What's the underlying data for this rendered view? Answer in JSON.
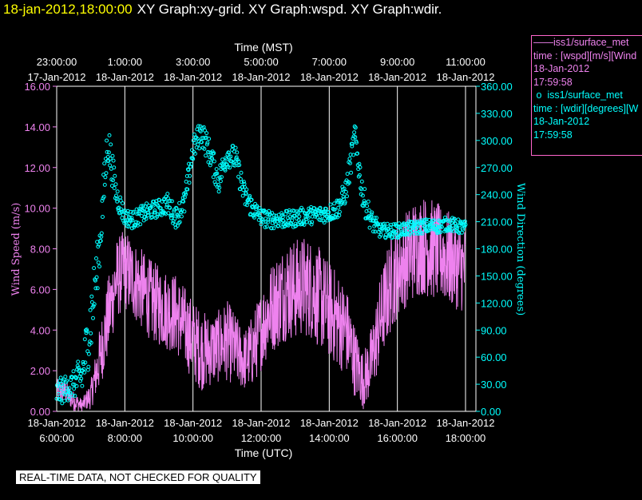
{
  "title": {
    "timestamp": "18-jan-2012,18:00:00",
    "graphs": "XY Graph:xy-grid.  XY Graph:wspd.  XY Graph:wdir."
  },
  "colors": {
    "wspd": "#ee82ee",
    "wdir": "#00ffff",
    "background": "#000000",
    "axis": "#ffffff"
  },
  "legend": {
    "wspd": {
      "name": "iss1/surface_met",
      "desc": "time : [wspd][m/s][Wind",
      "date": "18-Jan-2012",
      "time": "17:59:58"
    },
    "wdir": {
      "name": "iss1/surface_met",
      "desc": "time : [wdir][degrees][W",
      "date": "18-Jan-2012",
      "time": "17:59:58"
    }
  },
  "disclaimer": "REAL-TIME DATA, NOT CHECKED FOR QUALITY",
  "chart_data": {
    "type": "line",
    "top_axis": {
      "label": "Time (MST)",
      "ticks": [
        {
          "time": "23:00:00",
          "date": "17-Jan-2012"
        },
        {
          "time": "1:00:00",
          "date": "18-Jan-2012"
        },
        {
          "time": "3:00:00",
          "date": "18-Jan-2012"
        },
        {
          "time": "5:00:00",
          "date": "18-Jan-2012"
        },
        {
          "time": "7:00:00",
          "date": "18-Jan-2012"
        },
        {
          "time": "9:00:00",
          "date": "18-Jan-2012"
        },
        {
          "time": "11:00:00",
          "date": "18-Jan-2012"
        }
      ]
    },
    "bottom_axis": {
      "label": "Time (UTC)",
      "ticks": [
        {
          "time": "6:00:00",
          "date": "18-Jan-2012"
        },
        {
          "time": "8:00:00",
          "date": "18-Jan-2012"
        },
        {
          "time": "10:00:00",
          "date": "18-Jan-2012"
        },
        {
          "time": "12:00:00",
          "date": "18-Jan-2012"
        },
        {
          "time": "14:00:00",
          "date": "18-Jan-2012"
        },
        {
          "time": "16:00:00",
          "date": "18-Jan-2012"
        },
        {
          "time": "18:00:00",
          "date": "18-Jan-2012"
        }
      ],
      "range_hours": [
        6,
        18
      ]
    },
    "y_left": {
      "label": "Wind Speed (m/s)",
      "ylim": [
        0,
        16
      ],
      "ticks": [
        "0.00",
        "2.00",
        "4.00",
        "6.00",
        "8.00",
        "10.00",
        "12.00",
        "14.00",
        "16.00"
      ]
    },
    "y_right": {
      "label": "Wind Direction (degrees)",
      "ylim": [
        0,
        360
      ],
      "ticks": [
        "0.00",
        "30.00",
        "60.00",
        "90.00",
        "120.00",
        "150.00",
        "180.00",
        "210.00",
        "240.00",
        "270.00",
        "300.00",
        "330.00",
        "360.00"
      ]
    },
    "grid": "vertical lines at each time tick",
    "series": [
      {
        "key": "wspd",
        "style": "line",
        "axis": "left",
        "x": [
          6.0,
          6.25,
          6.5,
          6.75,
          7.0,
          7.25,
          7.5,
          7.75,
          8.0,
          8.25,
          8.5,
          8.75,
          9.0,
          9.25,
          9.5,
          9.75,
          10.0,
          10.25,
          10.5,
          10.75,
          11.0,
          11.25,
          11.5,
          11.75,
          12.0,
          12.25,
          12.5,
          12.75,
          13.0,
          13.25,
          13.5,
          13.75,
          14.0,
          14.25,
          14.5,
          14.75,
          15.0,
          15.25,
          15.5,
          15.75,
          16.0,
          16.25,
          16.5,
          16.75,
          17.0,
          17.25,
          17.5,
          17.75,
          18.0
        ],
        "y": [
          1.0,
          1.0,
          0.5,
          0.3,
          0.8,
          2.5,
          4.5,
          6.5,
          7.0,
          6.5,
          6.0,
          5.5,
          5.2,
          5.0,
          4.8,
          4.2,
          3.5,
          3.0,
          3.0,
          3.2,
          3.5,
          3.0,
          2.5,
          3.0,
          4.0,
          5.0,
          5.5,
          6.0,
          6.0,
          6.2,
          6.0,
          5.5,
          5.0,
          4.5,
          4.0,
          2.5,
          1.5,
          2.5,
          4.5,
          6.0,
          7.0,
          7.5,
          8.0,
          8.2,
          8.0,
          7.8,
          7.5,
          7.2,
          7.0
        ],
        "spread": [
          0.6,
          0.6,
          0.5,
          0.3,
          0.7,
          1.5,
          2.0,
          2.0,
          2.0,
          2.0,
          2.0,
          2.0,
          2.0,
          2.0,
          2.0,
          2.0,
          2.0,
          2.0,
          1.8,
          1.8,
          2.0,
          1.8,
          1.5,
          1.8,
          2.0,
          2.2,
          2.4,
          2.5,
          2.5,
          2.5,
          2.5,
          2.5,
          2.4,
          2.4,
          2.2,
          1.8,
          1.4,
          1.8,
          2.2,
          2.4,
          2.4,
          2.4,
          2.5,
          2.5,
          2.5,
          2.4,
          2.4,
          2.2,
          2.2
        ]
      },
      {
        "key": "wdir",
        "style": "scatter",
        "axis": "right",
        "x": [
          6.0,
          6.25,
          6.5,
          6.75,
          7.0,
          7.25,
          7.5,
          7.75,
          8.0,
          8.25,
          8.5,
          8.75,
          9.0,
          9.25,
          9.5,
          9.75,
          10.0,
          10.25,
          10.5,
          10.75,
          11.0,
          11.25,
          11.5,
          11.75,
          12.0,
          12.25,
          12.5,
          12.75,
          13.0,
          13.25,
          13.5,
          13.75,
          14.0,
          14.25,
          14.5,
          14.75,
          15.0,
          15.25,
          15.5,
          15.75,
          16.0,
          16.25,
          16.5,
          16.75,
          17.0,
          17.25,
          17.5,
          17.75,
          18.0
        ],
        "y": [
          20,
          25,
          30,
          40,
          100,
          180,
          300,
          240,
          215,
          212,
          218,
          222,
          225,
          230,
          215,
          230,
          290,
          310,
          285,
          255,
          285,
          280,
          240,
          225,
          215,
          212,
          213,
          212,
          214,
          216,
          217,
          218,
          220,
          225,
          245,
          305,
          235,
          210,
          200,
          200,
          200,
          202,
          203,
          205,
          205,
          205,
          208,
          205,
          203
        ],
        "spread": [
          15,
          15,
          15,
          25,
          40,
          25,
          25,
          15,
          10,
          10,
          10,
          10,
          10,
          12,
          12,
          14,
          14,
          15,
          15,
          15,
          14,
          14,
          15,
          12,
          10,
          10,
          10,
          10,
          10,
          10,
          10,
          10,
          10,
          12,
          14,
          16,
          16,
          12,
          8,
          8,
          8,
          8,
          8,
          8,
          8,
          8,
          8,
          8,
          8
        ]
      }
    ]
  }
}
